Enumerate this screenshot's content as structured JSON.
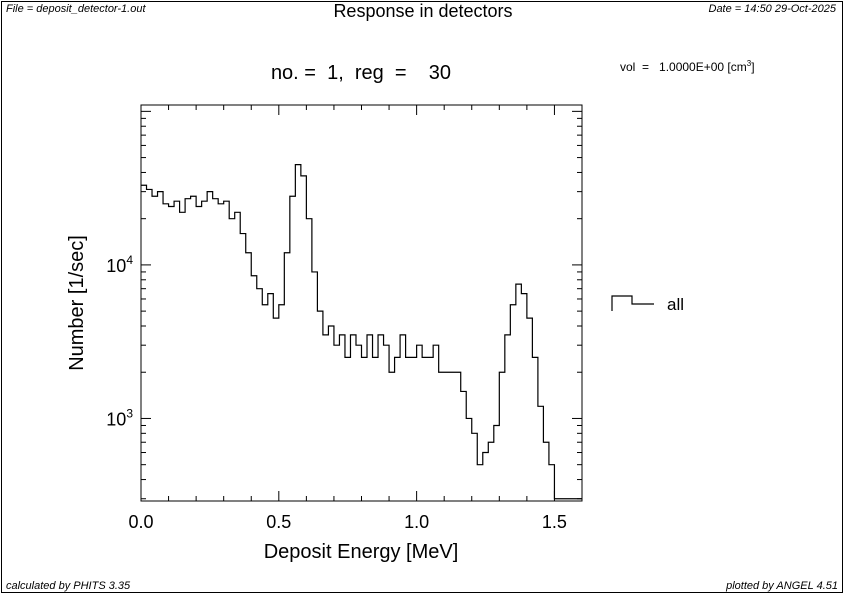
{
  "header": {
    "file": "File = deposit_detector-1.out",
    "date": "Date = 14:50 29-Oct-2025",
    "title": "Response in detectors"
  },
  "subtitle": "no. =  1,  reg  =    30",
  "vol": {
    "text": "vol  =   1.0000E+00 [cm",
    "unit_sup": "3",
    "close": "]"
  },
  "footer": {
    "left": "calculated by PHITS 3.35",
    "right": "plotted by ANGEL 4.51"
  },
  "chart_data": {
    "type": "line",
    "xlabel": "Deposit Energy [MeV]",
    "ylabel": "Number [1/sec]",
    "xlim": [
      0.0,
      1.6
    ],
    "ylim": [
      290,
      110000
    ],
    "yscale": "log",
    "xticks": [
      "0.0",
      "0.5",
      "1.0",
      "1.5"
    ],
    "yticks": [
      {
        "base": "10",
        "exp": "3",
        "value": 1000
      },
      {
        "base": "10",
        "exp": "4",
        "value": 10000
      }
    ],
    "grid": false,
    "legend": {
      "position": "right",
      "entries": [
        "all"
      ]
    },
    "series": [
      {
        "name": "all",
        "style": "histogram",
        "x": [
          0.0,
          0.02,
          0.04,
          0.06,
          0.08,
          0.1,
          0.12,
          0.14,
          0.16,
          0.18,
          0.2,
          0.22,
          0.24,
          0.26,
          0.28,
          0.3,
          0.32,
          0.34,
          0.36,
          0.38,
          0.4,
          0.42,
          0.44,
          0.46,
          0.48,
          0.5,
          0.52,
          0.54,
          0.56,
          0.58,
          0.6,
          0.62,
          0.64,
          0.66,
          0.68,
          0.7,
          0.72,
          0.74,
          0.76,
          0.78,
          0.8,
          0.82,
          0.84,
          0.86,
          0.88,
          0.9,
          0.92,
          0.94,
          0.96,
          0.98,
          1.0,
          1.02,
          1.04,
          1.06,
          1.08,
          1.1,
          1.12,
          1.14,
          1.16,
          1.18,
          1.2,
          1.22,
          1.24,
          1.26,
          1.28,
          1.3,
          1.32,
          1.34,
          1.36,
          1.38,
          1.4,
          1.42,
          1.44,
          1.46,
          1.48,
          1.5,
          1.52,
          1.54,
          1.56,
          1.58
        ],
        "y": [
          33000,
          31000,
          28000,
          30000,
          25000,
          24000,
          26000,
          22000,
          27000,
          28000,
          24000,
          26000,
          30000,
          27000,
          25000,
          26000,
          20000,
          22000,
          16000,
          12000,
          8500,
          7000,
          5500,
          6500,
          4500,
          5500,
          12000,
          28000,
          45000,
          38000,
          20000,
          9000,
          5000,
          3500,
          4000,
          3000,
          3500,
          2500,
          3500,
          3000,
          2500,
          3500,
          2500,
          3500,
          3000,
          2000,
          2500,
          3500,
          2500,
          2500,
          3000,
          2500,
          2500,
          3000,
          2000,
          2000,
          2000,
          2000,
          1500,
          1000,
          800,
          500,
          600,
          700,
          900,
          2000,
          3500,
          5500,
          7500,
          6500,
          4500,
          2500,
          1200,
          700,
          500,
          300,
          300,
          300,
          300,
          300
        ]
      }
    ]
  }
}
